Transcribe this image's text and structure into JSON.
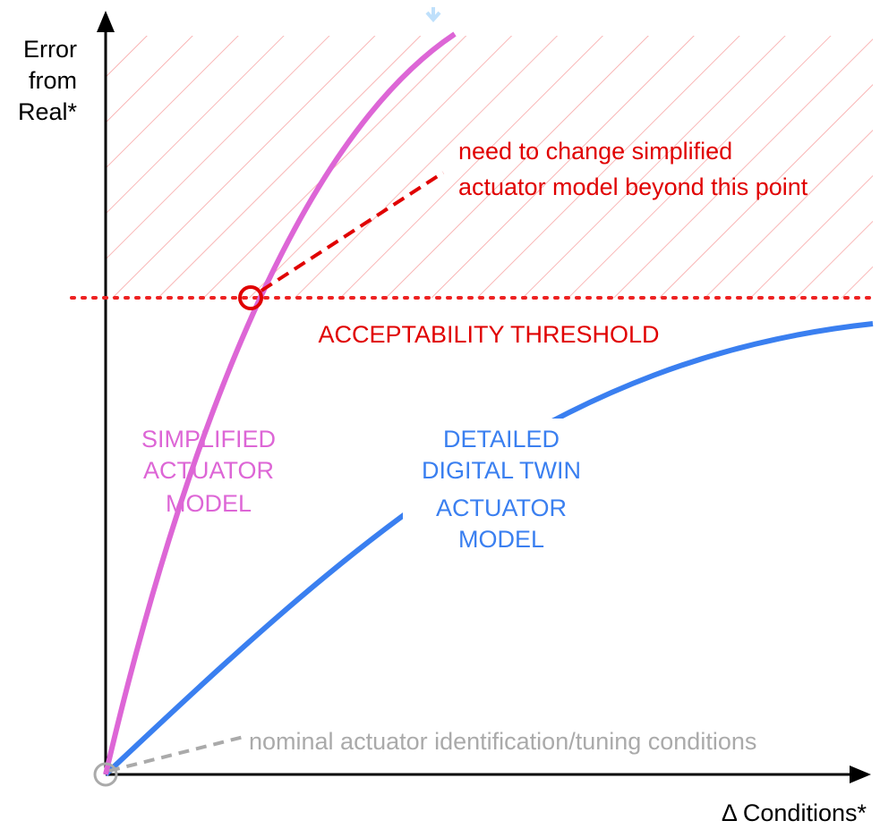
{
  "y_axis_label": {
    "lines": [
      "Error",
      "from",
      "Real*"
    ]
  },
  "x_axis_label": "Δ Conditions*",
  "annotation": {
    "lines": [
      "need to change simplified",
      "actuator model beyond this point"
    ]
  },
  "threshold_label": "ACCEPTABILITY THRESHOLD",
  "simplified_label": {
    "lines": [
      "SIMPLIFIED",
      "ACTUATOR",
      "MODEL"
    ]
  },
  "detailed_label": {
    "lines": [
      "DETAILED",
      "DIGITAL TWIN",
      "ACTUATOR",
      "MODEL"
    ]
  },
  "nominal_label": "nominal actuator identification/tuning conditions"
}
